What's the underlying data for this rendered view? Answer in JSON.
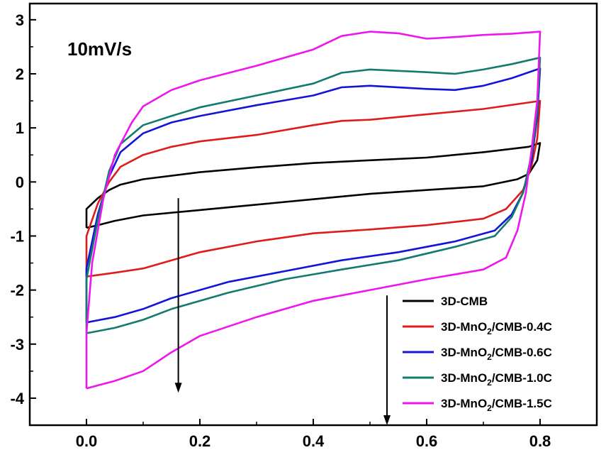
{
  "chart_data": {
    "type": "line",
    "title": "",
    "xlabel": "",
    "ylabel": "",
    "xlim": [
      -0.1,
      0.9
    ],
    "ylim": [
      -4.5,
      3.3
    ],
    "x_ticks": [
      "0.0",
      "0.2",
      "0.4",
      "0.6",
      "0.8"
    ],
    "y_ticks": [
      "-4",
      "-3",
      "-2",
      "-1",
      "0",
      "1",
      "2",
      "3"
    ],
    "annotation": "10mV/s",
    "grid": false,
    "legend_position": "bottom-right",
    "series": [
      {
        "name_main": "3D-CMB",
        "name_sub": "",
        "name_tail": "",
        "color": "#000000",
        "points": [
          [
            0.0,
            -0.85
          ],
          [
            0.0,
            -0.5
          ],
          [
            0.02,
            -0.3
          ],
          [
            0.04,
            -0.15
          ],
          [
            0.06,
            -0.05
          ],
          [
            0.1,
            0.05
          ],
          [
            0.2,
            0.18
          ],
          [
            0.3,
            0.27
          ],
          [
            0.4,
            0.35
          ],
          [
            0.5,
            0.4
          ],
          [
            0.6,
            0.45
          ],
          [
            0.7,
            0.55
          ],
          [
            0.78,
            0.65
          ],
          [
            0.8,
            0.72
          ],
          [
            0.795,
            0.4
          ],
          [
            0.78,
            0.15
          ],
          [
            0.76,
            0.05
          ],
          [
            0.7,
            -0.08
          ],
          [
            0.6,
            -0.15
          ],
          [
            0.5,
            -0.22
          ],
          [
            0.4,
            -0.32
          ],
          [
            0.3,
            -0.42
          ],
          [
            0.2,
            -0.52
          ],
          [
            0.1,
            -0.62
          ],
          [
            0.05,
            -0.72
          ],
          [
            0.02,
            -0.8
          ],
          [
            0.0,
            -0.85
          ]
        ]
      },
      {
        "name_main": "3D-MnO",
        "name_sub": "2",
        "name_tail": "/CMB-0.4C",
        "color": "#e01b1b",
        "points": [
          [
            0.0,
            -1.75
          ],
          [
            0.0,
            -1.0
          ],
          [
            0.02,
            -0.4
          ],
          [
            0.04,
            0.0
          ],
          [
            0.06,
            0.28
          ],
          [
            0.1,
            0.5
          ],
          [
            0.15,
            0.65
          ],
          [
            0.2,
            0.75
          ],
          [
            0.3,
            0.87
          ],
          [
            0.4,
            1.05
          ],
          [
            0.45,
            1.13
          ],
          [
            0.5,
            1.15
          ],
          [
            0.6,
            1.25
          ],
          [
            0.7,
            1.35
          ],
          [
            0.8,
            1.5
          ],
          [
            0.795,
            0.8
          ],
          [
            0.785,
            0.3
          ],
          [
            0.77,
            -0.15
          ],
          [
            0.74,
            -0.5
          ],
          [
            0.7,
            -0.68
          ],
          [
            0.6,
            -0.8
          ],
          [
            0.5,
            -0.88
          ],
          [
            0.4,
            -0.95
          ],
          [
            0.3,
            -1.1
          ],
          [
            0.2,
            -1.3
          ],
          [
            0.15,
            -1.45
          ],
          [
            0.1,
            -1.6
          ],
          [
            0.05,
            -1.68
          ],
          [
            0.0,
            -1.75
          ]
        ]
      },
      {
        "name_main": "3D-MnO",
        "name_sub": "2",
        "name_tail": "/CMB-0.6C",
        "color": "#1414d8",
        "points": [
          [
            0.0,
            -2.6
          ],
          [
            0.0,
            -1.6
          ],
          [
            0.02,
            -0.6
          ],
          [
            0.04,
            0.1
          ],
          [
            0.06,
            0.55
          ],
          [
            0.1,
            0.9
          ],
          [
            0.15,
            1.1
          ],
          [
            0.2,
            1.22
          ],
          [
            0.3,
            1.42
          ],
          [
            0.4,
            1.6
          ],
          [
            0.45,
            1.75
          ],
          [
            0.5,
            1.78
          ],
          [
            0.6,
            1.72
          ],
          [
            0.65,
            1.7
          ],
          [
            0.7,
            1.78
          ],
          [
            0.75,
            1.92
          ],
          [
            0.8,
            2.1
          ],
          [
            0.795,
            1.2
          ],
          [
            0.785,
            0.4
          ],
          [
            0.77,
            -0.2
          ],
          [
            0.75,
            -0.6
          ],
          [
            0.72,
            -0.9
          ],
          [
            0.65,
            -1.1
          ],
          [
            0.55,
            -1.3
          ],
          [
            0.45,
            -1.45
          ],
          [
            0.35,
            -1.65
          ],
          [
            0.25,
            -1.85
          ],
          [
            0.15,
            -2.15
          ],
          [
            0.1,
            -2.35
          ],
          [
            0.05,
            -2.5
          ],
          [
            0.0,
            -2.6
          ]
        ]
      },
      {
        "name_main": "3D-MnO",
        "name_sub": "2",
        "name_tail": "/CMB-1.0C",
        "color": "#127a6e",
        "points": [
          [
            0.0,
            -2.8
          ],
          [
            0.0,
            -1.8
          ],
          [
            0.02,
            -0.7
          ],
          [
            0.04,
            0.2
          ],
          [
            0.06,
            0.7
          ],
          [
            0.1,
            1.05
          ],
          [
            0.15,
            1.22
          ],
          [
            0.2,
            1.38
          ],
          [
            0.3,
            1.6
          ],
          [
            0.4,
            1.82
          ],
          [
            0.45,
            2.02
          ],
          [
            0.5,
            2.08
          ],
          [
            0.6,
            2.03
          ],
          [
            0.65,
            2.0
          ],
          [
            0.7,
            2.08
          ],
          [
            0.75,
            2.18
          ],
          [
            0.8,
            2.3
          ],
          [
            0.795,
            1.3
          ],
          [
            0.785,
            0.5
          ],
          [
            0.77,
            -0.2
          ],
          [
            0.75,
            -0.65
          ],
          [
            0.72,
            -1.0
          ],
          [
            0.65,
            -1.2
          ],
          [
            0.55,
            -1.45
          ],
          [
            0.45,
            -1.62
          ],
          [
            0.35,
            -1.8
          ],
          [
            0.25,
            -2.05
          ],
          [
            0.15,
            -2.35
          ],
          [
            0.1,
            -2.55
          ],
          [
            0.05,
            -2.7
          ],
          [
            0.0,
            -2.8
          ]
        ]
      },
      {
        "name_main": "3D-MnO",
        "name_sub": "2",
        "name_tail": "/CMB-1.5C",
        "color": "#ee16ee",
        "points": [
          [
            0.0,
            -3.82
          ],
          [
            0.0,
            -2.8
          ],
          [
            0.01,
            -1.5
          ],
          [
            0.03,
            -0.3
          ],
          [
            0.05,
            0.5
          ],
          [
            0.08,
            1.1
          ],
          [
            0.1,
            1.4
          ],
          [
            0.15,
            1.7
          ],
          [
            0.2,
            1.88
          ],
          [
            0.3,
            2.15
          ],
          [
            0.4,
            2.45
          ],
          [
            0.45,
            2.7
          ],
          [
            0.5,
            2.78
          ],
          [
            0.55,
            2.75
          ],
          [
            0.6,
            2.65
          ],
          [
            0.65,
            2.68
          ],
          [
            0.7,
            2.72
          ],
          [
            0.75,
            2.74
          ],
          [
            0.8,
            2.78
          ],
          [
            0.795,
            1.5
          ],
          [
            0.785,
            0.6
          ],
          [
            0.775,
            -0.2
          ],
          [
            0.76,
            -0.9
          ],
          [
            0.74,
            -1.4
          ],
          [
            0.7,
            -1.62
          ],
          [
            0.6,
            -1.8
          ],
          [
            0.5,
            -2.0
          ],
          [
            0.4,
            -2.2
          ],
          [
            0.3,
            -2.5
          ],
          [
            0.2,
            -2.85
          ],
          [
            0.15,
            -3.15
          ],
          [
            0.1,
            -3.5
          ],
          [
            0.05,
            -3.68
          ],
          [
            0.0,
            -3.82
          ]
        ]
      }
    ],
    "arrows": [
      {
        "x": 0.162,
        "y_start": -0.3,
        "y_end": -3.9
      },
      {
        "x": 0.53,
        "y_start": -2.1,
        "y_end": -4.5
      }
    ]
  }
}
